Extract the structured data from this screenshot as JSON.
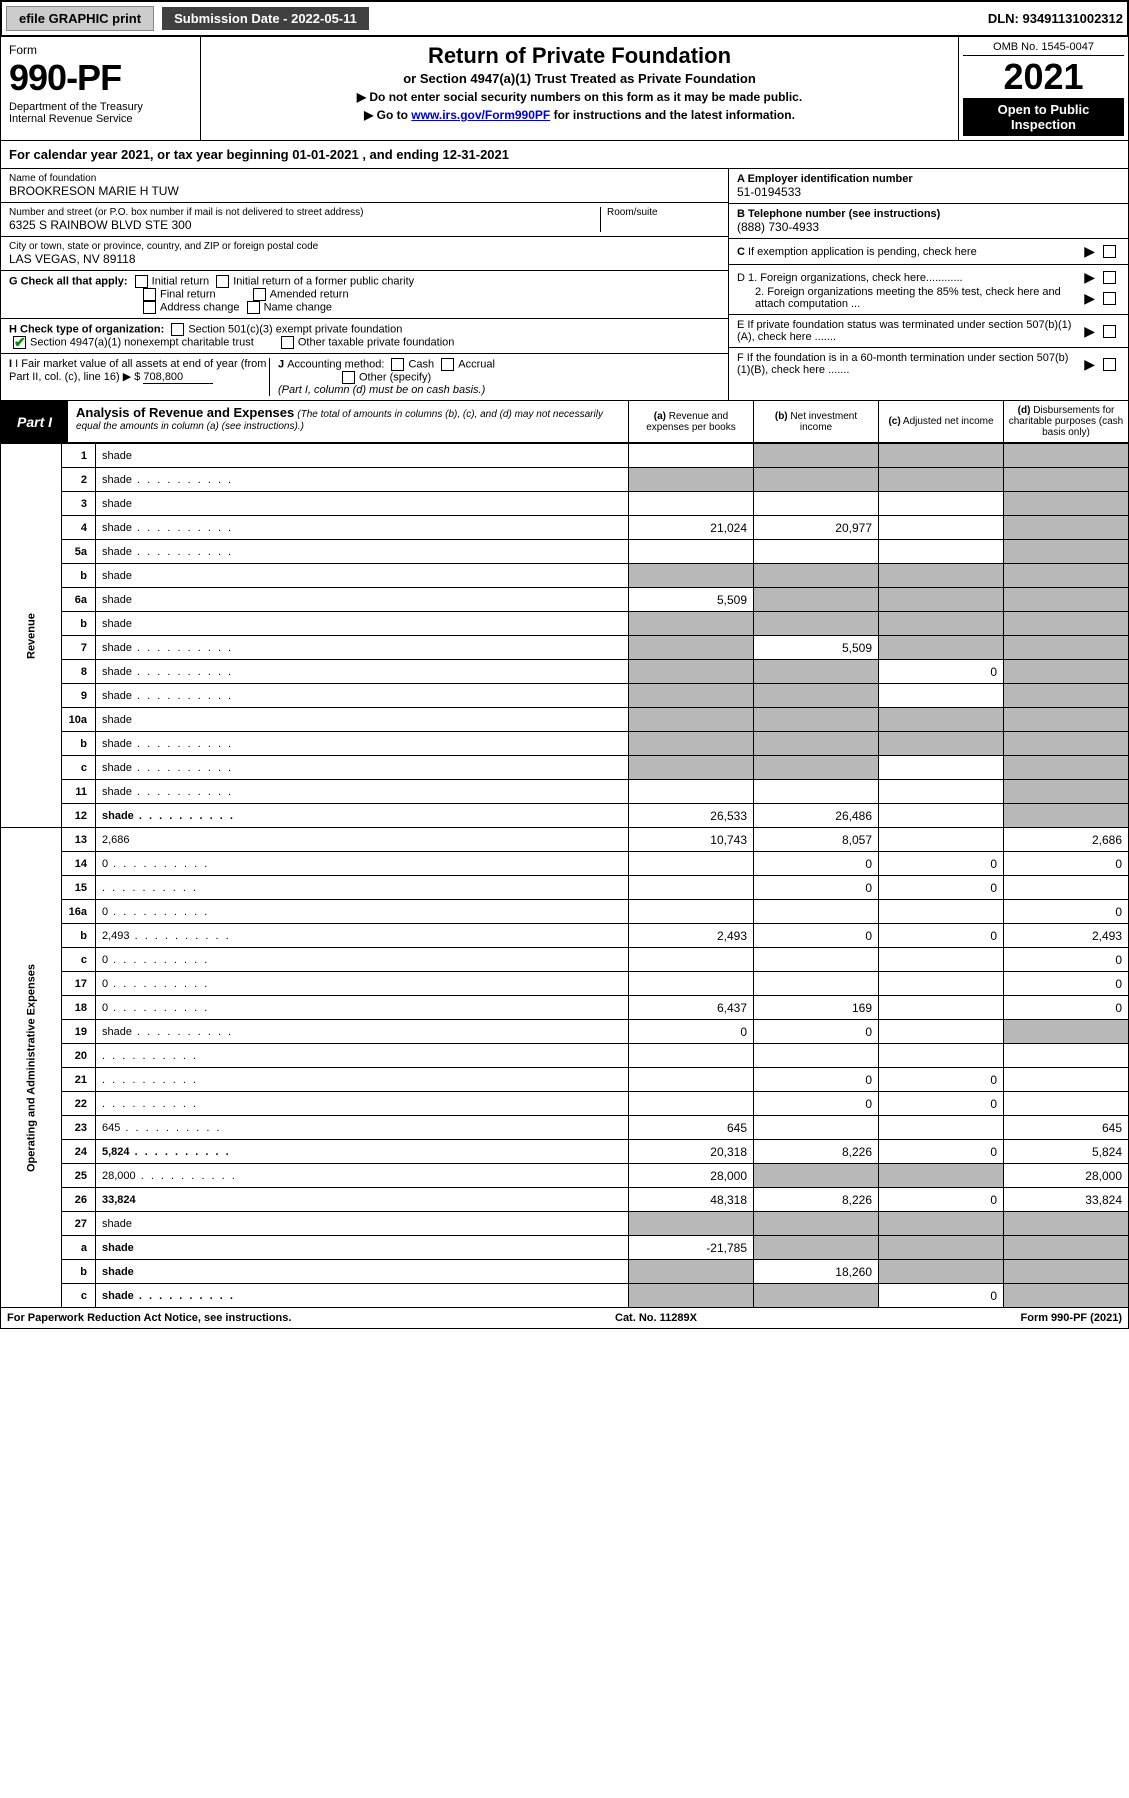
{
  "topbar": {
    "efile": "efile GRAPHIC print",
    "subdate_label": "Submission Date - 2022-05-11",
    "dln": "DLN: 93491131002312"
  },
  "header": {
    "form_word": "Form",
    "form_num": "990-PF",
    "dept": "Department of the Treasury\nInternal Revenue Service",
    "title": "Return of Private Foundation",
    "subtitle": "or Section 4947(a)(1) Trust Treated as Private Foundation",
    "line1": "▶ Do not enter social security numbers on this form as it may be made public.",
    "line2_pre": "▶ Go to ",
    "line2_link": "www.irs.gov/Form990PF",
    "line2_post": " for instructions and the latest information.",
    "omb": "OMB No. 1545-0047",
    "year": "2021",
    "open": "Open to Public Inspection"
  },
  "calyear": "For calendar year 2021, or tax year beginning 01-01-2021           , and ending 12-31-2021",
  "id": {
    "name_label": "Name of foundation",
    "name": "BROOKRESON MARIE H TUW",
    "addr_label": "Number and street (or P.O. box number if mail is not delivered to street address)",
    "addr": "6325 S RAINBOW BLVD STE 300",
    "room": "Room/suite",
    "city_label": "City or town, state or province, country, and ZIP or foreign postal code",
    "city": "LAS VEGAS, NV  89118",
    "ein_label": "A Employer identification number",
    "ein": "51-0194533",
    "tel_label": "B Telephone number (see instructions)",
    "tel": "(888) 730-4933",
    "c": "C If exemption application is pending, check here",
    "d1": "D 1. Foreign organizations, check here............",
    "d2": "2. Foreign organizations meeting the 85% test, check here and attach computation ...",
    "e": "E  If private foundation status was terminated under section 507(b)(1)(A), check here .......",
    "f": "F  If the foundation is in a 60-month termination under section 507(b)(1)(B), check here .......",
    "g_label": "G Check all that apply:",
    "g_opts": [
      "Initial return",
      "Initial return of a former public charity",
      "Final return",
      "Amended return",
      "Address change",
      "Name change"
    ],
    "h_label": "H Check type of organization:",
    "h_opts": [
      "Section 501(c)(3) exempt private foundation",
      "Section 4947(a)(1) nonexempt charitable trust",
      "Other taxable private foundation"
    ],
    "i_label": "I Fair market value of all assets at end of year (from Part II, col. (c), line 16) ▶ $",
    "i_val": "708,800",
    "j_label": "J Accounting method:",
    "j_cash": "Cash",
    "j_accrual": "Accrual",
    "j_other": "Other (specify)",
    "j_note": "(Part I, column (d) must be on cash basis.)"
  },
  "part1": {
    "label": "Part I",
    "heading": "Analysis of Revenue and Expenses",
    "sub": "(The total of amounts in columns (b), (c), and (d) may not necessarily equal the amounts in column (a) (see instructions).)",
    "cols": {
      "a": "(a) Revenue and expenses per books",
      "b": "(b) Net investment income",
      "c": "(c) Adjusted net income",
      "d": "(d) Disbursements for charitable purposes (cash basis only)"
    }
  },
  "side": {
    "rev": "Revenue",
    "exp": "Operating and Administrative Expenses"
  },
  "rows": [
    {
      "n": "1",
      "d": "shade",
      "a": "",
      "b": "shade",
      "c": "shade"
    },
    {
      "n": "2",
      "d": "shade",
      "dots": true,
      "a": "shade",
      "b": "shade",
      "c": "shade"
    },
    {
      "n": "3",
      "d": "shade",
      "a": "",
      "b": "",
      "c": ""
    },
    {
      "n": "4",
      "d": "shade",
      "dots": true,
      "a": "21,024",
      "b": "20,977",
      "c": ""
    },
    {
      "n": "5a",
      "d": "shade",
      "dots": true,
      "a": "",
      "b": "",
      "c": ""
    },
    {
      "n": "b",
      "d": "shade",
      "a": "shade",
      "b": "shade",
      "c": "shade"
    },
    {
      "n": "6a",
      "d": "shade",
      "a": "5,509",
      "b": "shade",
      "c": "shade"
    },
    {
      "n": "b",
      "d": "shade",
      "a": "shade",
      "b": "shade",
      "c": "shade"
    },
    {
      "n": "7",
      "d": "shade",
      "dots": true,
      "a": "shade",
      "b": "5,509",
      "c": "shade"
    },
    {
      "n": "8",
      "d": "shade",
      "dots": true,
      "a": "shade",
      "b": "shade",
      "c": "0"
    },
    {
      "n": "9",
      "d": "shade",
      "dots": true,
      "a": "shade",
      "b": "shade",
      "c": ""
    },
    {
      "n": "10a",
      "d": "shade",
      "a": "shade",
      "b": "shade",
      "c": "shade"
    },
    {
      "n": "b",
      "d": "shade",
      "dots": true,
      "a": "shade",
      "b": "shade",
      "c": "shade"
    },
    {
      "n": "c",
      "d": "shade",
      "dots": true,
      "a": "shade",
      "b": "shade",
      "c": ""
    },
    {
      "n": "11",
      "d": "shade",
      "dots": true,
      "a": "",
      "b": "",
      "c": ""
    },
    {
      "n": "12",
      "d": "shade",
      "dots": true,
      "bold": true,
      "a": "26,533",
      "b": "26,486",
      "c": ""
    },
    {
      "n": "13",
      "d": "2,686",
      "a": "10,743",
      "b": "8,057",
      "c": ""
    },
    {
      "n": "14",
      "d": "0",
      "dots": true,
      "a": "",
      "b": "0",
      "c": "0"
    },
    {
      "n": "15",
      "d": "",
      "dots": true,
      "a": "",
      "b": "0",
      "c": "0"
    },
    {
      "n": "16a",
      "d": "0",
      "dots": true,
      "a": "",
      "b": "",
      "c": ""
    },
    {
      "n": "b",
      "d": "2,493",
      "dots": true,
      "a": "2,493",
      "b": "0",
      "c": "0"
    },
    {
      "n": "c",
      "d": "0",
      "dots": true,
      "a": "",
      "b": "",
      "c": ""
    },
    {
      "n": "17",
      "d": "0",
      "dots": true,
      "a": "",
      "b": "",
      "c": ""
    },
    {
      "n": "18",
      "d": "0",
      "dots": true,
      "a": "6,437",
      "b": "169",
      "c": ""
    },
    {
      "n": "19",
      "d": "shade",
      "dots": true,
      "a": "0",
      "b": "0",
      "c": ""
    },
    {
      "n": "20",
      "d": "",
      "dots": true,
      "a": "",
      "b": "",
      "c": ""
    },
    {
      "n": "21",
      "d": "",
      "dots": true,
      "a": "",
      "b": "0",
      "c": "0"
    },
    {
      "n": "22",
      "d": "",
      "dots": true,
      "a": "",
      "b": "0",
      "c": "0"
    },
    {
      "n": "23",
      "d": "645",
      "dots": true,
      "a": "645",
      "b": "",
      "c": ""
    },
    {
      "n": "24",
      "d": "5,824",
      "dots": true,
      "bold": true,
      "a": "20,318",
      "b": "8,226",
      "c": "0"
    },
    {
      "n": "25",
      "d": "28,000",
      "dots": true,
      "a": "28,000",
      "b": "shade",
      "c": "shade"
    },
    {
      "n": "26",
      "d": "33,824",
      "bold": true,
      "a": "48,318",
      "b": "8,226",
      "c": "0"
    },
    {
      "n": "27",
      "d": "shade",
      "a": "shade",
      "b": "shade",
      "c": "shade"
    },
    {
      "n": "a",
      "d": "shade",
      "bold": true,
      "a": "-21,785",
      "b": "shade",
      "c": "shade"
    },
    {
      "n": "b",
      "d": "shade",
      "bold": true,
      "a": "shade",
      "b": "18,260",
      "c": "shade"
    },
    {
      "n": "c",
      "d": "shade",
      "dots": true,
      "bold": true,
      "a": "shade",
      "b": "shade",
      "c": "0"
    }
  ],
  "footer": {
    "left": "For Paperwork Reduction Act Notice, see instructions.",
    "mid": "Cat. No. 11289X",
    "right": "Form 990-PF (2021)"
  }
}
